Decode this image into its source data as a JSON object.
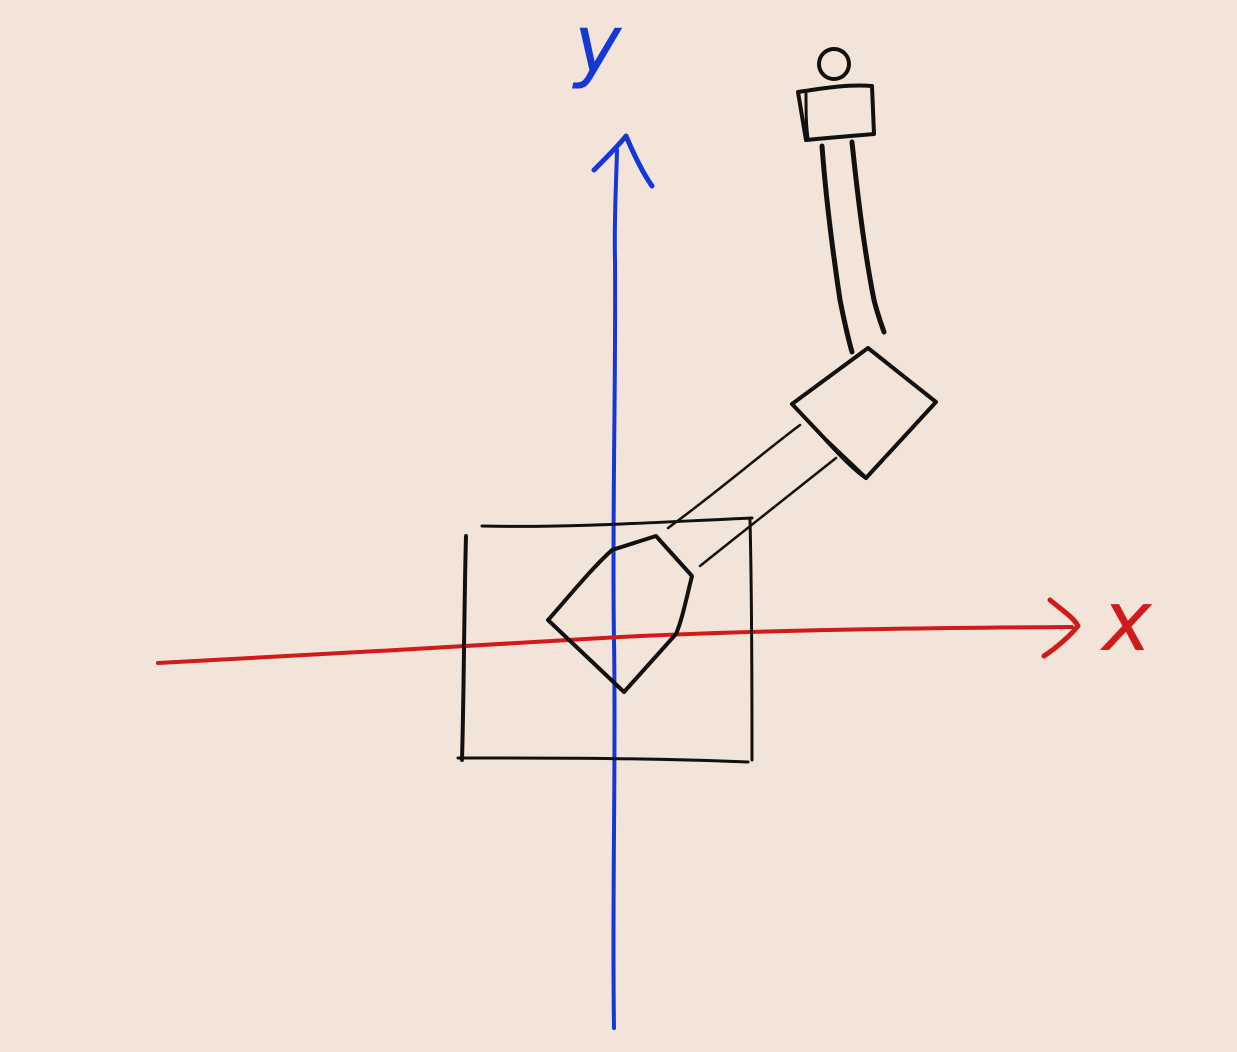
{
  "axes": {
    "x_label": "x",
    "y_label": "y",
    "x_color": "#d11a1a",
    "y_color": "#1438d8"
  },
  "ink": {
    "drawing_color": "#111111",
    "background": "#f3e4d9"
  }
}
